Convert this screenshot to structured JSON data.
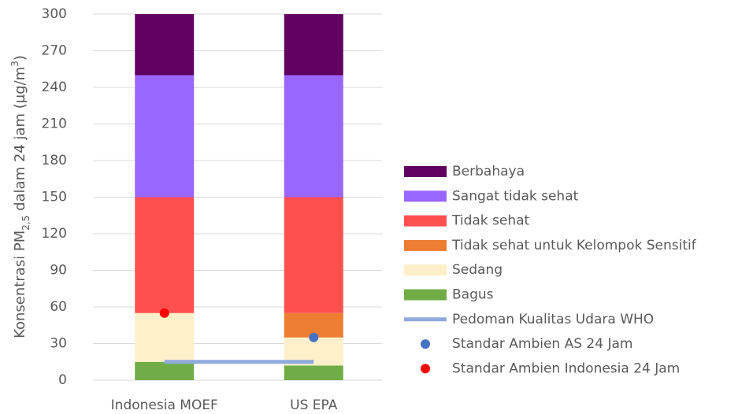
{
  "chart_data": {
    "type": "bar",
    "stacked": true,
    "y_label_parts": [
      "Konsentrasi PM",
      "2,5",
      " dalam 24 jam (µg/m",
      "3",
      ")"
    ],
    "categories": [
      "Indonesia MOEF",
      "US EPA"
    ],
    "series": [
      {
        "name": "Berbahaya",
        "type": "bar",
        "color": "#600060",
        "values": [
          50,
          50
        ]
      },
      {
        "name": "Sangat tidak sehat",
        "type": "bar",
        "color": "#9966ff",
        "values": [
          100,
          100
        ]
      },
      {
        "name": "Tidak sehat",
        "type": "bar",
        "color": "#ff5050",
        "values": [
          95,
          95
        ]
      },
      {
        "name": "Tidak sehat untuk Kelompok Sensitif",
        "type": "bar",
        "color": "#ed7d31",
        "values": [
          0,
          20
        ]
      },
      {
        "name": "Sedang",
        "type": "bar",
        "color": "#fff0c9",
        "values": [
          40,
          23
        ]
      },
      {
        "name": "Bagus",
        "type": "bar",
        "color": "#70ad47",
        "values": [
          15,
          12
        ]
      },
      {
        "name": "Pedoman Kualitas Udara WHO",
        "type": "line",
        "color": "#8faadc",
        "values": [
          15,
          15
        ]
      },
      {
        "name": "Standar Ambien AS 24 Jam",
        "type": "scatter",
        "color": "#4472c4",
        "values": [
          null,
          35
        ]
      },
      {
        "name": "Standar Ambien Indonesia 24 Jam",
        "type": "scatter",
        "color": "#ff0000",
        "values": [
          55,
          null
        ]
      }
    ],
    "ylim": [
      0,
      300
    ],
    "yticks": [
      0,
      30,
      60,
      90,
      120,
      150,
      180,
      210,
      240,
      270,
      300
    ],
    "grid": true
  }
}
